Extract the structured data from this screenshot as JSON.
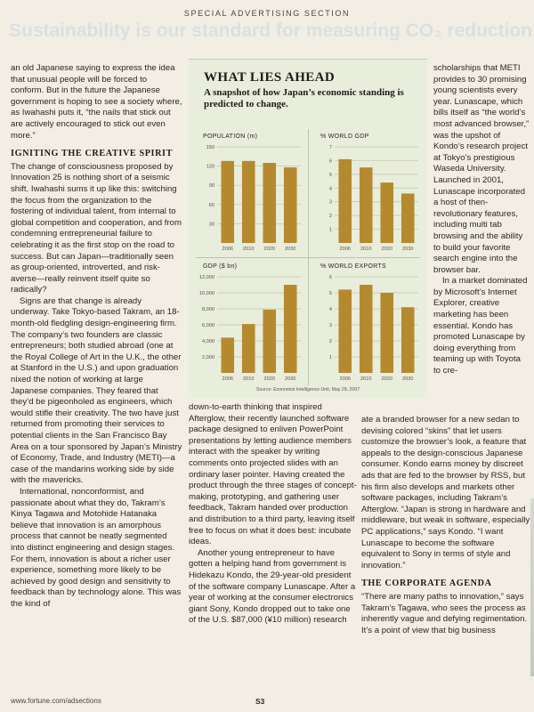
{
  "header": {
    "section_label": "SPECIAL ADVERTISING SECTION",
    "banner": "Sustainability is our standard for measuring CO₂ reduction."
  },
  "column1": {
    "paragraphs": [
      {
        "type": "p",
        "text": "an old Japanese saying to express the idea that unusual people will be forced to conform. But in the future the Japanese government is hoping to see a society where, as Iwahashi puts it, “the nails that stick out are actively encouraged to stick out even more.”"
      },
      {
        "type": "h",
        "text": "IGNITING THE CREATIVE SPIRIT"
      },
      {
        "type": "p",
        "text": "The change of consciousness proposed by Innovation 25 is nothing short of a seismic shift. Iwahashi sums it up like this: switching the focus from the organization to the fostering of individual talent, from internal to global competition and cooperation, and from condemning entrepreneurial failure to celebrating it as the first stop on the road to success. But can Japan—traditionally seen as group-oriented, introverted, and risk-averse—really reinvent itself quite so radically?"
      },
      {
        "type": "pi",
        "text": "Signs are that change is already underway. Take Tokyo-based Takram, an 18-month-old fledgling design-engineering firm. The company’s two founders are classic entrepreneurs; both studied abroad (one at the Royal College of Art in the U.K., the other at Stanford in the U.S.) and upon graduation nixed the notion of working at large Japanese companies. They feared that they’d be pigeonholed as engineers, which would stifle their creativity. The two have just returned from promoting their services to potential clients in the San Francisco Bay Area on a tour sponsored by Japan’s Ministry of Economy, Trade, and Industry (METI)—a case of the mandarins working side by side with the mavericks."
      },
      {
        "type": "pi",
        "text": "International, nonconformist, and passionate about what they do, Takram’s Kinya Tagawa and Motohide Hatanaka believe that innovation is an amorphous process that cannot be neatly segmented into distinct engineering and design stages. For them, innovation is about a richer user experience, something more likely to be achieved by good design and sensitivity to feedback than by technology alone. This was the kind of"
      }
    ]
  },
  "column2": {
    "paragraphs": [
      {
        "type": "p",
        "text": "down-to-earth thinking that inspired Afterglow, their recently launched software package designed to enliven PowerPoint presentations by letting audience members interact with the speaker by writing comments onto projected slides with an ordinary laser pointer. Having created the product through the three stages of concept-making, prototyping, and gathering user feedback, Takram handed over production and distribution to a third party, leaving itself free to focus on what it does best: incubate ideas."
      },
      {
        "type": "pi",
        "text": "Another young entrepreneur to have gotten a helping hand from government is Hidekazu Kondo, the 29-year-old president of the software company Lunascape. After a year of working at the consumer electronics giant Sony, Kondo dropped out to take one of the U.S. $87,000 (¥10 million) research"
      }
    ]
  },
  "column3_top": {
    "paragraphs": [
      {
        "type": "p",
        "text": "scholarships that METI provides to 30 promising young scientists every year. Lunascape, which bills itself as “the world’s most advanced browser,” was the upshot of Kondo’s research project at Tokyo’s prestigious Waseda University. Launched in 2001, Lunascape incorporated a host of then-revolutionary features, including multi tab browsing and the ability to build your favorite search engine into the browser bar."
      },
      {
        "type": "pi",
        "text": "In a market dominated by Microsoft’s Internet Explorer, creative marketing has been essential. Kondo has promoted Lunascape by doing everything from teaming up with Toyota to cre-"
      }
    ]
  },
  "column3_bottom": {
    "paragraphs": [
      {
        "type": "p",
        "text": "ate a branded browser for a new sedan to devising colored “skins” that let users customize the browser’s look, a feature that appeals to the design-conscious Japanese consumer. Kondo earns money by discreet ads that are fed to the browser by RSS, but his firm also develops and markets other software packages, including Takram’s Afterglow. “Japan is strong in hardware and middleware, but weak in software, especially PC applications,” says Kondo. “I want Lunascape to become the software equivalent to Sony in terms of style and innovation.”"
      },
      {
        "type": "h",
        "text": "THE CORPORATE AGENDA"
      },
      {
        "type": "p",
        "text": "“There are many paths to innovation,” says Takram’s Tagawa, who sees the process as inherently vague and defying regimentation. It’s a point of view that big business"
      }
    ]
  },
  "panel": {
    "title": "WHAT LIES AHEAD",
    "subtitle": "A snapshot of how Japan’s economic standing is predicted to change.",
    "source": "Source: Economist Intelligence Unit, May 29, 2007",
    "bar_color": "#b58a2f"
  },
  "chart_data": [
    {
      "type": "bar",
      "title": "POPULATION (m)",
      "categories": [
        "2006",
        "2010",
        "2020",
        "2030"
      ],
      "values": [
        128,
        128,
        125,
        118
      ],
      "ylim": [
        0,
        150
      ],
      "yticks": [
        "30",
        "60",
        "90",
        "120",
        "150"
      ],
      "grid": true
    },
    {
      "type": "bar",
      "title": "% WORLD GDP",
      "categories": [
        "2006",
        "2010",
        "2020",
        "2030"
      ],
      "values": [
        6.1,
        5.5,
        4.4,
        3.6
      ],
      "ylim": [
        0,
        7
      ],
      "yticks": [
        "1",
        "2",
        "3",
        "4",
        "5",
        "6",
        "7"
      ],
      "grid": true
    },
    {
      "type": "bar",
      "title": "GDP ($ bn)",
      "categories": [
        "2006",
        "2010",
        "2020",
        "2030"
      ],
      "values": [
        4400,
        6100,
        7900,
        11000
      ],
      "ylim": [
        0,
        12000
      ],
      "yticks": [
        "2,000",
        "4,000",
        "6,000",
        "8,000",
        "10,000",
        "12,000"
      ],
      "grid": true
    },
    {
      "type": "bar",
      "title": "% WORLD EXPORTS",
      "categories": [
        "2006",
        "2010",
        "2020",
        "2030"
      ],
      "values": [
        5.2,
        5.5,
        5.0,
        4.1
      ],
      "ylim": [
        0,
        6
      ],
      "yticks": [
        "1",
        "2",
        "3",
        "4",
        "5",
        "6"
      ],
      "grid": true
    }
  ],
  "footer": {
    "url": "www.fortune.com/adsections",
    "page": "S3"
  }
}
